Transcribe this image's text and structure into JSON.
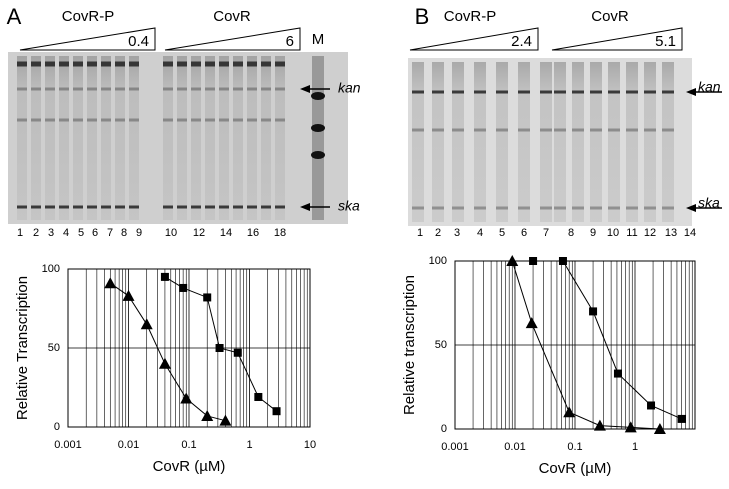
{
  "figure": {
    "panels": [
      {
        "label": "A",
        "groups": [
          "CovR-P",
          "CovR"
        ],
        "max_labels": [
          "0.4",
          "6"
        ],
        "marker_lane": "M",
        "bands": [
          "kan",
          "ska"
        ],
        "lanes": [
          "1",
          "2",
          "3",
          "4",
          "5",
          "6",
          "7",
          "8",
          "9",
          "10",
          "12",
          "14",
          "16",
          "18"
        ]
      },
      {
        "label": "B",
        "groups": [
          "CovR-P",
          "CovR"
        ],
        "max_labels": [
          "2.4",
          "5.1"
        ],
        "bands": [
          "kan",
          "ska"
        ],
        "lanes": [
          "1",
          "2",
          "3",
          "4",
          "5",
          "6",
          "7",
          "8",
          "9",
          "10",
          "11",
          "12",
          "13",
          "14"
        ]
      }
    ]
  },
  "chart_data": [
    {
      "type": "line",
      "xlabel": "CovR (µM)",
      "ylabel": "Relative Transcription",
      "xscale": "log",
      "xlim": [
        0.001,
        10
      ],
      "xticks": [
        0.001,
        0.01,
        0.1,
        1,
        10
      ],
      "ylim": [
        0,
        100
      ],
      "yticks": [
        0,
        50,
        100
      ],
      "grid": true,
      "series": [
        {
          "marker": "triangle",
          "color": "#000000",
          "x": [
            0.005,
            0.01,
            0.02,
            0.04,
            0.09,
            0.2,
            0.4
          ],
          "values": [
            91,
            83,
            65,
            40,
            18,
            7,
            4
          ]
        },
        {
          "marker": "square",
          "color": "#000000",
          "x": [
            0.04,
            0.08,
            0.2,
            0.32,
            0.64,
            1.4,
            2.8
          ],
          "values": [
            95,
            88,
            82,
            50,
            47,
            19,
            10
          ]
        }
      ]
    },
    {
      "type": "line",
      "xlabel": "CovR (µM)",
      "ylabel": "Relative transcription",
      "xscale": "log",
      "xlim": [
        0.001,
        10
      ],
      "xticks": [
        0.001,
        0.01,
        0.1,
        1
      ],
      "ylim": [
        0,
        100
      ],
      "yticks": [
        0,
        50,
        100
      ],
      "grid": true,
      "series": [
        {
          "marker": "triangle",
          "color": "#000000",
          "x": [
            0.009,
            0.019,
            0.08,
            0.26,
            0.85,
            2.6
          ],
          "values": [
            100,
            63,
            10,
            2,
            1,
            0
          ]
        },
        {
          "marker": "square",
          "color": "#000000",
          "x": [
            0.02,
            0.063,
            0.2,
            0.52,
            1.85,
            6
          ],
          "values": [
            100,
            100,
            70,
            33,
            14,
            6
          ]
        }
      ]
    }
  ]
}
